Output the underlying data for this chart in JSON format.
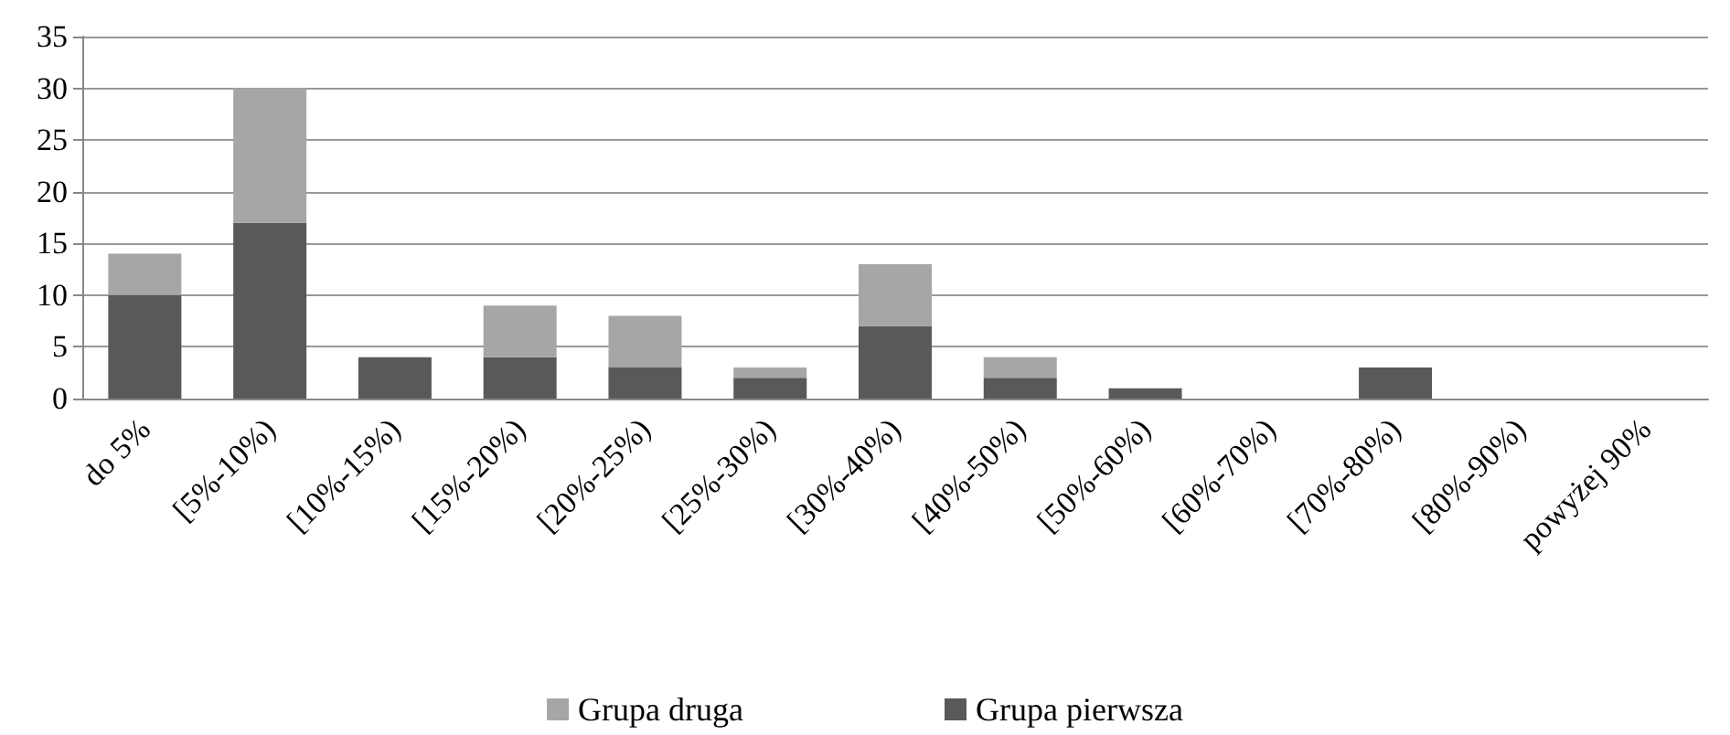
{
  "chart_data": {
    "type": "bar",
    "stacked": true,
    "categories": [
      "do 5%",
      "[5%-10%)",
      "[10%-15%)",
      "[15%-20%)",
      "[20%-25%)",
      "[25%-30%)",
      "[30%-40%)",
      "[40%-50%)",
      "[50%-60%)",
      "[60%-70%)",
      "[70%-80%)",
      "[80%-90%)",
      "powyżej 90%"
    ],
    "series": [
      {
        "name": "Grupa pierwsza",
        "color": "#595959",
        "values": [
          10,
          17,
          4,
          4,
          3,
          2,
          7,
          2,
          1,
          0,
          3,
          0,
          0
        ]
      },
      {
        "name": "Grupa druga",
        "color": "#a6a6a6",
        "values": [
          4,
          13,
          0,
          5,
          5,
          1,
          6,
          2,
          0,
          0,
          0,
          0,
          0
        ]
      }
    ],
    "ylim": [
      0,
      35
    ],
    "yticks": [
      0,
      5,
      10,
      15,
      20,
      25,
      30,
      35
    ],
    "grid": "y",
    "legend": "bottom"
  }
}
